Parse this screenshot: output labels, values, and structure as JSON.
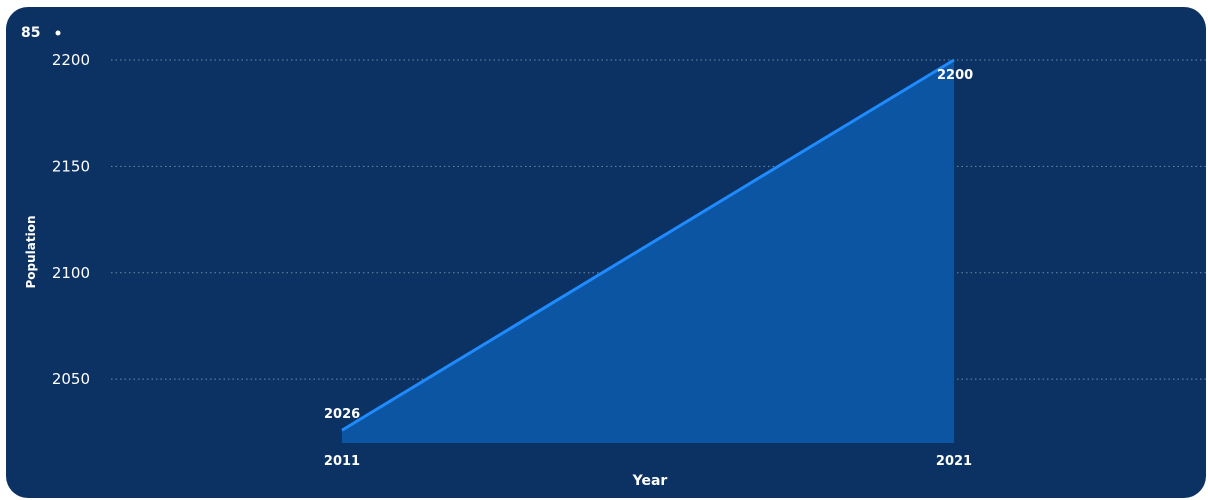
{
  "badge": {
    "text": "85"
  },
  "colors": {
    "background": "#0c3263",
    "area": "#0b55a3",
    "line": "#1f8bff",
    "grid": "#6f89a8",
    "text": "#ffffff"
  },
  "chart_data": {
    "type": "area",
    "x": [
      2011,
      2021
    ],
    "series": [
      {
        "values": [
          2026,
          2200
        ]
      }
    ],
    "xlabel": "Year",
    "ylabel": "Population",
    "ylim": [
      2020,
      2200
    ],
    "yticks": [
      2050,
      2100,
      2150,
      2200
    ],
    "grid": true,
    "data_labels": [
      "2026",
      "2200"
    ],
    "x_tick_labels": [
      "2011",
      "2021"
    ]
  }
}
